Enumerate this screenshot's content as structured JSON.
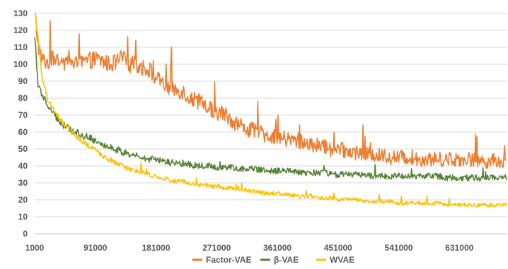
{
  "chart_data": {
    "type": "line",
    "title": "",
    "xlabel": "",
    "ylabel": "",
    "xlim": [
      1000,
      701000
    ],
    "ylim": [
      0,
      130
    ],
    "x_ticks": [
      "1000",
      "91000",
      "181000",
      "271000",
      "361000",
      "451000",
      "541000",
      "631000"
    ],
    "x_tick_values": [
      1000,
      91000,
      181000,
      271000,
      361000,
      451000,
      541000,
      631000
    ],
    "y_ticks": [
      "0",
      "10",
      "20",
      "30",
      "40",
      "50",
      "60",
      "70",
      "80",
      "90",
      "100",
      "110",
      "120",
      "130"
    ],
    "y_tick_values": [
      0,
      10,
      20,
      30,
      40,
      50,
      60,
      70,
      80,
      90,
      100,
      110,
      120,
      130
    ],
    "grid": "horizontal",
    "legend_position": "bottom",
    "series": [
      {
        "name": "Factor-VAE",
        "color": "#ED7D31",
        "x": [
          1000,
          6000,
          11000,
          21000,
          31000,
          41000,
          51000,
          61000,
          71000,
          81000,
          91000,
          101000,
          111000,
          121000,
          131000,
          141000,
          151000,
          161000,
          171000,
          181000,
          191000,
          201000,
          211000,
          221000,
          231000,
          241000,
          251000,
          261000,
          271000,
          281000,
          291000,
          301000,
          311000,
          321000,
          331000,
          341000,
          351000,
          361000,
          371000,
          381000,
          391000,
          401000,
          411000,
          421000,
          431000,
          441000,
          451000,
          461000,
          471000,
          481000,
          491000,
          501000,
          511000,
          521000,
          531000,
          541000,
          551000,
          561000,
          571000,
          581000,
          591000,
          601000,
          611000,
          621000,
          631000,
          641000,
          651000,
          661000,
          671000,
          681000,
          691000,
          701000
        ],
        "y": [
          132,
          112,
          103,
          101,
          104,
          99,
          103,
          100,
          101,
          102,
          103,
          102,
          100,
          101,
          104,
          100,
          100,
          98,
          97,
          92,
          88,
          86,
          85,
          84,
          80,
          79,
          76,
          74,
          72,
          71,
          68,
          65,
          63,
          61,
          60,
          59,
          58,
          57,
          56,
          55,
          55,
          54,
          52,
          52,
          51,
          50,
          50,
          49,
          48,
          48,
          47,
          47,
          46,
          46,
          45,
          45,
          45,
          45,
          44,
          44,
          44,
          44,
          44,
          44,
          44,
          44,
          44,
          43,
          43,
          43,
          43,
          42
        ]
      },
      {
        "name": "β-VAE",
        "color": "#548235",
        "x": [
          1000,
          6000,
          11000,
          21000,
          31000,
          41000,
          51000,
          61000,
          71000,
          81000,
          91000,
          101000,
          111000,
          121000,
          131000,
          141000,
          151000,
          161000,
          171000,
          181000,
          191000,
          201000,
          211000,
          221000,
          231000,
          241000,
          251000,
          261000,
          271000,
          281000,
          291000,
          301000,
          311000,
          321000,
          331000,
          341000,
          351000,
          361000,
          371000,
          381000,
          391000,
          401000,
          411000,
          421000,
          431000,
          441000,
          451000,
          461000,
          471000,
          481000,
          491000,
          501000,
          511000,
          521000,
          531000,
          541000,
          551000,
          561000,
          571000,
          581000,
          591000,
          601000,
          611000,
          621000,
          631000,
          641000,
          651000,
          661000,
          671000,
          681000,
          691000,
          701000
        ],
        "y": [
          118,
          88,
          82,
          76,
          70,
          65,
          62,
          60,
          58,
          57,
          55,
          53,
          51,
          50,
          48,
          47,
          46,
          45,
          44,
          43,
          43,
          42,
          42,
          41,
          41,
          40,
          40,
          40,
          39,
          39,
          39,
          38,
          38,
          38,
          38,
          37,
          37,
          37,
          37,
          37,
          36,
          36,
          36,
          36,
          36,
          35,
          35,
          35,
          35,
          35,
          35,
          34,
          34,
          34,
          34,
          34,
          34,
          34,
          34,
          34,
          34,
          34,
          33,
          33,
          33,
          33,
          33,
          33,
          33,
          33,
          33,
          33
        ]
      },
      {
        "name": "WVAE",
        "color": "#FFC000",
        "x": [
          1000,
          6000,
          11000,
          21000,
          31000,
          41000,
          51000,
          61000,
          71000,
          81000,
          91000,
          101000,
          111000,
          121000,
          131000,
          141000,
          151000,
          161000,
          171000,
          181000,
          191000,
          201000,
          211000,
          221000,
          231000,
          241000,
          251000,
          261000,
          271000,
          281000,
          291000,
          301000,
          311000,
          321000,
          331000,
          341000,
          351000,
          361000,
          371000,
          381000,
          391000,
          401000,
          411000,
          421000,
          431000,
          441000,
          451000,
          461000,
          471000,
          481000,
          491000,
          501000,
          511000,
          521000,
          531000,
          541000,
          551000,
          561000,
          571000,
          581000,
          591000,
          601000,
          611000,
          621000,
          631000,
          641000,
          651000,
          661000,
          671000,
          681000,
          691000,
          701000
        ],
        "y": [
          132,
          115,
          95,
          78,
          72,
          66,
          62,
          58,
          55,
          52,
          50,
          46,
          44,
          42,
          40,
          38,
          37,
          36,
          35,
          34,
          33,
          32,
          31,
          31,
          30,
          29,
          29,
          28,
          28,
          27,
          27,
          26,
          26,
          25,
          25,
          24,
          24,
          24,
          23,
          23,
          22,
          22,
          22,
          21,
          21,
          21,
          20,
          20,
          20,
          20,
          19,
          19,
          19,
          19,
          19,
          18,
          18,
          18,
          18,
          18,
          18,
          18,
          17,
          17,
          17,
          17,
          17,
          17,
          17,
          17,
          17,
          17
        ]
      }
    ]
  }
}
